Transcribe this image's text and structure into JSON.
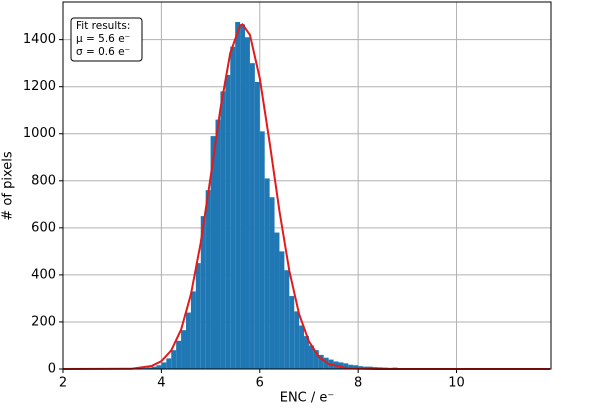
{
  "chart_data": {
    "type": "histogram",
    "xlabel": "ENC / e⁻",
    "ylabel": "# of pixels",
    "bins": [
      3.5,
      3.6,
      3.7,
      3.8,
      3.9,
      4.0,
      4.1,
      4.2,
      4.3,
      4.4,
      4.5,
      4.6,
      4.7,
      4.8,
      4.9,
      5.0,
      5.1,
      5.2,
      5.3,
      5.4,
      5.5,
      5.6,
      5.7,
      5.8,
      5.9,
      6.0,
      6.1,
      6.2,
      6.3,
      6.4,
      6.5,
      6.6,
      6.7,
      6.8,
      6.9,
      7.0,
      7.1,
      7.2,
      7.3,
      7.4,
      7.5,
      7.6,
      7.7,
      7.8,
      7.9,
      8.0,
      8.1,
      8.2,
      8.3,
      8.4,
      8.5,
      8.6,
      8.7,
      8.8,
      8.9,
      9.0,
      9.1,
      9.2,
      9.3
    ],
    "values": [
      2,
      4,
      6,
      10,
      16,
      28,
      45,
      80,
      120,
      165,
      240,
      330,
      450,
      650,
      760,
      990,
      1060,
      1180,
      1250,
      1370,
      1475,
      1465,
      1410,
      1300,
      1220,
      1010,
      810,
      730,
      580,
      500,
      420,
      310,
      245,
      185,
      140,
      100,
      80,
      60,
      48,
      40,
      32,
      28,
      24,
      18,
      16,
      12,
      10,
      10,
      8,
      7,
      6,
      5,
      6,
      4,
      4,
      3,
      2,
      2
    ],
    "color": "#1f77b4",
    "fit": {
      "type": "line",
      "color": "#e31a1c",
      "x": [
        2,
        3.4,
        3.8,
        4.0,
        4.2,
        4.4,
        4.6,
        4.8,
        5.0,
        5.2,
        5.4,
        5.6,
        5.65,
        5.8,
        6.0,
        6.2,
        6.4,
        6.6,
        6.8,
        7.0,
        7.2,
        7.4,
        7.8,
        8.4,
        11.9
      ],
      "values": [
        0,
        1.3,
        12.6,
        33.4,
        79,
        167,
        317,
        537,
        815,
        1106,
        1343,
        1460,
        1465,
        1420,
        1236,
        963,
        671,
        418,
        233,
        117,
        52,
        21,
        2.4,
        0,
        0
      ]
    },
    "annotation": [
      "Fit results:",
      "μ = 5.6 e⁻",
      "σ = 0.6 e⁻"
    ],
    "xlim": [
      2,
      11.92
    ],
    "ylim": [
      0,
      1560
    ],
    "xticks": [
      2,
      4,
      6,
      8,
      10
    ],
    "yticks": [
      0,
      200,
      400,
      600,
      800,
      1000,
      1200,
      1400
    ],
    "grid": true
  }
}
